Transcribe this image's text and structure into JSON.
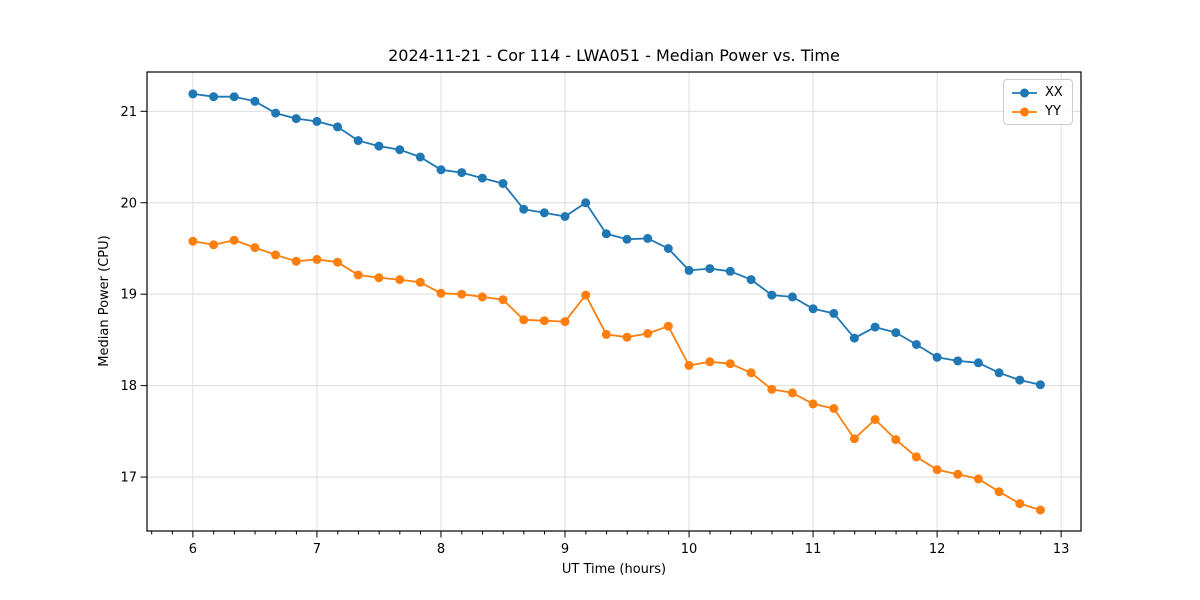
{
  "figure": {
    "background": "#ffffff",
    "frame_color": "#000000",
    "grid_color": "#dedede"
  },
  "chart_data": {
    "type": "line",
    "title": "2024-11-21 - Cor 114 - LWA051 - Median Power vs. Time",
    "xlabel": "UT Time (hours)",
    "ylabel": "Median Power (CPU)",
    "xlim": [
      5.63,
      13.16
    ],
    "ylim": [
      16.41,
      21.43
    ],
    "xticks": [
      6,
      7,
      8,
      9,
      10,
      11,
      12,
      13
    ],
    "yticks": [
      17,
      18,
      19,
      20,
      21
    ],
    "x_minor_tick_step": 0.1667,
    "grid": true,
    "legend_position": "upper right",
    "x": [
      6.0,
      6.167,
      6.333,
      6.5,
      6.667,
      6.833,
      7.0,
      7.167,
      7.333,
      7.5,
      7.667,
      7.833,
      8.0,
      8.167,
      8.333,
      8.5,
      8.667,
      8.833,
      9.0,
      9.167,
      9.333,
      9.5,
      9.667,
      9.833,
      10.0,
      10.167,
      10.333,
      10.5,
      10.667,
      10.833,
      11.0,
      11.167,
      11.333,
      11.5,
      11.667,
      11.833,
      12.0,
      12.167,
      12.333,
      12.5,
      12.667,
      12.833
    ],
    "series": [
      {
        "name": "XX",
        "color": "#1f77b4",
        "values": [
          21.19,
          21.16,
          21.16,
          21.11,
          20.98,
          20.92,
          20.89,
          20.83,
          20.68,
          20.62,
          20.58,
          20.5,
          20.36,
          20.33,
          20.27,
          20.21,
          19.93,
          19.89,
          19.85,
          20.0,
          19.66,
          19.6,
          19.61,
          19.5,
          19.26,
          19.28,
          19.25,
          19.16,
          18.99,
          18.97,
          18.84,
          18.79,
          18.52,
          18.64,
          18.58,
          18.45,
          18.31,
          18.27,
          18.25,
          18.14,
          18.06,
          18.01
        ]
      },
      {
        "name": "YY",
        "color": "#ff7f0e",
        "values": [
          19.58,
          19.54,
          19.59,
          19.51,
          19.43,
          19.36,
          19.38,
          19.35,
          19.21,
          19.18,
          19.16,
          19.13,
          19.01,
          19.0,
          18.97,
          18.94,
          18.72,
          18.71,
          18.7,
          18.99,
          18.56,
          18.53,
          18.57,
          18.65,
          18.22,
          18.26,
          18.24,
          18.14,
          17.96,
          17.92,
          17.8,
          17.75,
          17.42,
          17.63,
          17.41,
          17.22,
          17.08,
          17.03,
          16.98,
          16.84,
          16.71,
          16.64
        ]
      }
    ]
  }
}
